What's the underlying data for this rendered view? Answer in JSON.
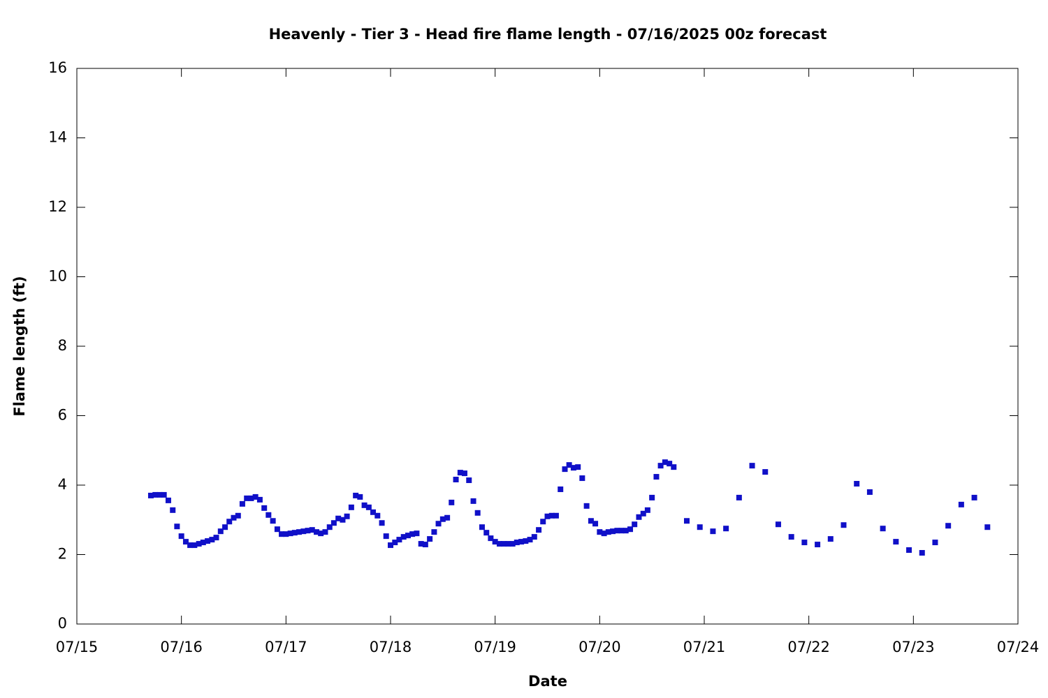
{
  "chart_data": {
    "type": "scatter",
    "title": "Heavenly - Tier 3 - Head fire flame length - 07/16/2025 00z forecast",
    "x_label": "Date",
    "y_label": "Flame length (ft)",
    "xlim": [
      15,
      24
    ],
    "xticks": [
      {
        "value": 15,
        "label": "07/15"
      },
      {
        "value": 16,
        "label": "07/16"
      },
      {
        "value": 17,
        "label": "07/17"
      },
      {
        "value": 18,
        "label": "07/18"
      },
      {
        "value": 19,
        "label": "07/19"
      },
      {
        "value": 20,
        "label": "07/20"
      },
      {
        "value": 21,
        "label": "07/21"
      },
      {
        "value": 22,
        "label": "07/22"
      },
      {
        "value": 23,
        "label": "07/23"
      },
      {
        "value": 24,
        "label": "07/24"
      }
    ],
    "ylim": [
      0,
      16
    ],
    "yticks": [
      0,
      2,
      4,
      6,
      8,
      10,
      12,
      14,
      16
    ],
    "grid": false,
    "series": [
      {
        "color": "#1010c8",
        "x": [
          15.708,
          15.75,
          15.792,
          15.833,
          15.875,
          15.917,
          15.958,
          16,
          16.042,
          16.083,
          16.125,
          16.167,
          16.208,
          16.25,
          16.292,
          16.333,
          16.375,
          16.417,
          16.458,
          16.5,
          16.542,
          16.583,
          16.625,
          16.667,
          16.708,
          16.75,
          16.792,
          16.833,
          16.875,
          16.917,
          16.958,
          17,
          17.042,
          17.083,
          17.125,
          17.167,
          17.208,
          17.25,
          17.292,
          17.333,
          17.375,
          17.417,
          17.458,
          17.5,
          17.542,
          17.583,
          17.625,
          17.667,
          17.708,
          17.75,
          17.792,
          17.833,
          17.875,
          17.917,
          17.958,
          18,
          18.042,
          18.083,
          18.125,
          18.167,
          18.208,
          18.25,
          18.292,
          18.333,
          18.375,
          18.417,
          18.458,
          18.5,
          18.542,
          18.583,
          18.625,
          18.667,
          18.708,
          18.75,
          18.792,
          18.833,
          18.875,
          18.917,
          18.958,
          19,
          19.042,
          19.083,
          19.125,
          19.167,
          19.208,
          19.25,
          19.292,
          19.333,
          19.375,
          19.417,
          19.458,
          19.5,
          19.542,
          19.583,
          19.625,
          19.667,
          19.708,
          19.75,
          19.792,
          19.833,
          19.875,
          19.917,
          19.958,
          20,
          20.042,
          20.083,
          20.125,
          20.167,
          20.208,
          20.25,
          20.292,
          20.333,
          20.375,
          20.417,
          20.458,
          20.5,
          20.542,
          20.583,
          20.625,
          20.667,
          20.708,
          20.833,
          20.958,
          21.083,
          21.208,
          21.333,
          21.458,
          21.583,
          21.708,
          21.833,
          21.958,
          22.083,
          22.208,
          22.333,
          22.458,
          22.583,
          22.708,
          22.833,
          22.958,
          23.083,
          23.208,
          23.333,
          23.458,
          23.583,
          23.708
        ],
        "values": [
          3.7,
          3.72,
          3.72,
          3.72,
          3.56,
          3.28,
          2.81,
          2.53,
          2.37,
          2.27,
          2.27,
          2.31,
          2.35,
          2.39,
          2.43,
          2.49,
          2.67,
          2.79,
          2.95,
          3.06,
          3.12,
          3.46,
          3.62,
          3.62,
          3.66,
          3.58,
          3.34,
          3.14,
          2.97,
          2.73,
          2.59,
          2.59,
          2.61,
          2.63,
          2.65,
          2.67,
          2.69,
          2.71,
          2.65,
          2.61,
          2.65,
          2.79,
          2.91,
          3.04,
          3.0,
          3.1,
          3.36,
          3.7,
          3.66,
          3.42,
          3.36,
          3.22,
          3.12,
          2.91,
          2.53,
          2.27,
          2.35,
          2.43,
          2.51,
          2.55,
          2.59,
          2.61,
          2.31,
          2.29,
          2.45,
          2.65,
          2.89,
          3.02,
          3.06,
          3.5,
          4.16,
          4.36,
          4.34,
          4.14,
          3.54,
          3.2,
          2.79,
          2.63,
          2.47,
          2.37,
          2.31,
          2.31,
          2.31,
          2.31,
          2.35,
          2.37,
          2.39,
          2.43,
          2.51,
          2.71,
          2.95,
          3.1,
          3.12,
          3.12,
          3.88,
          4.46,
          4.58,
          4.5,
          4.52,
          4.2,
          3.4,
          2.97,
          2.89,
          2.65,
          2.61,
          2.65,
          2.67,
          2.69,
          2.69,
          2.69,
          2.73,
          2.87,
          3.08,
          3.18,
          3.28,
          3.64,
          4.24,
          4.56,
          4.66,
          4.62,
          4.52,
          2.97,
          2.79,
          2.67,
          2.75,
          3.64,
          4.56,
          4.38,
          2.87,
          2.51,
          2.35,
          2.29,
          2.45,
          2.85,
          4.04,
          3.8,
          2.75,
          2.37,
          2.13,
          2.05,
          2.35,
          2.83,
          3.44,
          3.64,
          2.79
        ]
      }
    ]
  }
}
